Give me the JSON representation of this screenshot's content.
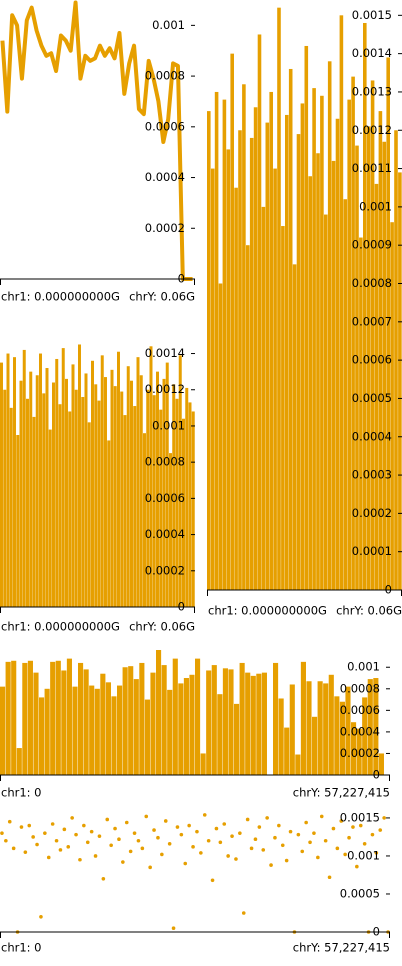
{
  "chart_data": [
    {
      "type": "line",
      "color": "#e69f00",
      "axis_labels": [
        "chr1: 0.000000000G",
        "chrY: 0.06G"
      ],
      "values": [
        0.00094,
        0.00066,
        0.00104,
        0.001,
        0.00079,
        0.00102,
        0.00107,
        0.00098,
        0.00092,
        0.00088,
        0.00089,
        0.00082,
        0.00096,
        0.00094,
        0.0009,
        0.00109,
        0.00079,
        0.00088,
        0.00086,
        0.00087,
        0.00092,
        0.00088,
        0.00091,
        0.00087,
        0.00097,
        0.00073,
        0.00085,
        0.00092,
        0.00067,
        0.00065,
        0.00086,
        0.00079,
        0.0007,
        0.00054,
        0.00063,
        0.00085,
        0.00084,
        0,
        0,
        0
      ],
      "ylim": [
        0,
        0.0011
      ],
      "yticks": [
        0,
        0.0002,
        0.0004,
        0.0006,
        0.0008,
        0.001
      ]
    },
    {
      "type": "bar",
      "color": "#e69f00",
      "axis_labels": [
        "chr1: 0.000000000G",
        "chrY: 0.06G"
      ],
      "values": [
        0.00125,
        0.0011,
        0.0013,
        0.0008,
        0.00128,
        0.00115,
        0.0014,
        0.00105,
        0.0012,
        0.00132,
        0.0009,
        0.00118,
        0.00126,
        0.00145,
        0.001,
        0.00122,
        0.0013,
        0.0011,
        0.00152,
        0.00095,
        0.00124,
        0.00136,
        0.00085,
        0.00119,
        0.00127,
        0.00142,
        0.00108,
        0.00131,
        0.00114,
        0.00129,
        0.00098,
        0.00138,
        0.00112,
        0.00123,
        0.0015,
        0.00102,
        0.00128,
        0.00134,
        0.00116,
        0.00092,
        0.00148,
        0.00121,
        0.00133,
        0.00106,
        0.00125,
        0.00117,
        0.00139,
        0.00096,
        0.0012,
        0.00109
      ],
      "ylim": [
        0,
        0.00154
      ],
      "yticks": [
        0,
        0.0001,
        0.0002,
        0.0003,
        0.0004,
        0.0005,
        0.0006,
        0.0007,
        0.0008,
        0.0009,
        0.001,
        0.0011,
        0.0012,
        0.0013,
        0.0014,
        0.0015
      ]
    },
    {
      "type": "bar",
      "color": "#e69f00",
      "axis_labels": [
        "chr1: 0.000000000G",
        "chrY: 0.06G"
      ],
      "values": [
        0.00135,
        0.0012,
        0.0014,
        0.0011,
        0.00138,
        0.00095,
        0.00125,
        0.00142,
        0.00115,
        0.0013,
        0.00105,
        0.00128,
        0.0014,
        0.00118,
        0.00132,
        0.00098,
        0.00124,
        0.00137,
        0.00112,
        0.00143,
        0.00126,
        0.00108,
        0.00134,
        0.0012,
        0.00145,
        0.00116,
        0.00129,
        0.00102,
        0.00136,
        0.00123,
        0.00114,
        0.00139,
        0.00127,
        0.00092,
        0.00131,
        0.00122,
        0.00141,
        0.00119,
        0.00106,
        0.00133,
        0.00125,
        0.00111,
        0.00138,
        0.00128,
        0.00096,
        0.0012,
        0.00144,
        0.00117,
        0.0013,
        0.00109,
        0.00126,
        0.00135,
        0.00085,
        0.00123,
        0.00115,
        0.00139,
        0.00104,
        0.00121,
        0.00113,
        0.00108
      ],
      "ylim": [
        0,
        0.00153
      ],
      "yticks": [
        0,
        0.0002,
        0.0004,
        0.0006,
        0.0008,
        0.001,
        0.0012,
        0.0014
      ]
    },
    {
      "type": "bar",
      "color": "#e69f00",
      "axis_labels": [
        "chr1: 0",
        "chrY: 57,227,415"
      ],
      "values": [
        0.00082,
        0.00105,
        0.00106,
        0.00025,
        0.00104,
        0.00106,
        0.00095,
        0.00072,
        0.0008,
        0.00105,
        0.00106,
        0.00097,
        0.00108,
        0.00082,
        0.00104,
        0.00098,
        0.00083,
        0.0008,
        0.00094,
        0.00086,
        0.00073,
        0.00083,
        0.001,
        0.00101,
        0.00089,
        0.00104,
        0.0007,
        0.00095,
        0.00116,
        0.00102,
        0.00079,
        0.00108,
        0.00085,
        0.0009,
        0.00093,
        0.00108,
        0.0002,
        0.00097,
        0.00102,
        0.00075,
        0.00099,
        0.00098,
        0.00066,
        0.00104,
        0.00095,
        0.00092,
        0.00094,
        0.00095,
        0,
        0.00104,
        0.00071,
        0.00044,
        0.00084,
        0.00019,
        0.00105,
        0.00087,
        0.00054,
        0.00087,
        0.00085,
        0.00093,
        0.00073,
        0.00068,
        0.00082,
        0.00049,
        0.00043,
        0.00072,
        0.00089,
        0.0009,
        0.0002,
        0
      ],
      "ylim": [
        0,
        0.00116
      ],
      "yticks": [
        0,
        0.0002,
        0.0004,
        0.0006,
        0.0008,
        0.001
      ]
    },
    {
      "type": "scatter",
      "color": "#e69f00",
      "axis_labels": [
        "chr1: 0",
        "chrY: 57,227,415"
      ],
      "values": [
        0.0013,
        0.0012,
        0.00145,
        0.0011,
        0,
        0.00138,
        0.00105,
        0.0014,
        0.00125,
        0.00115,
        0.0002,
        0.0013,
        0.00098,
        0.00142,
        0.0012,
        0.00108,
        0.00135,
        0.00112,
        0.0015,
        0.00128,
        0.00095,
        0.0014,
        0.00118,
        0.00132,
        0.001,
        0.00126,
        0.0007,
        0.00148,
        0.00114,
        0.00136,
        0.00122,
        0.00092,
        0.00144,
        0.00106,
        0.0013,
        0.0012,
        0.0011,
        0.00152,
        0.00085,
        0.00134,
        0.00124,
        0.00102,
        0.00146,
        0.00116,
        5e-05,
        0.00138,
        0.00128,
        0.0009,
        0.0014,
        0.00112,
        0.00132,
        0.00104,
        0.00154,
        0.0012,
        0.00068,
        0.00136,
        0.00118,
        0.00142,
        0.001,
        0.00126,
        0.00096,
        0.0013,
        0.00025,
        0.00148,
        0.0011,
        0.00122,
        0.00138,
        0.00108,
        0.0015,
        0.00088,
        0.00124,
        0.0014,
        0.00114,
        0.00094,
        0.00132,
        0,
        0.00128,
        0.00106,
        0.00144,
        0.00118,
        0.0013,
        0.00098,
        0.00152,
        0.0012,
        0.00072,
        0.00136,
        0.0011,
        0.00146,
        0.00102,
        0.00124,
        0.00138,
        0.00086,
        0.0014,
        0.00116,
        0,
        0.00128,
        0.00104,
        0.00134,
        0.0015,
        0
      ],
      "ylim": [
        0,
        0.00167
      ],
      "yticks": [
        0,
        0.0005,
        0.001,
        0.0015
      ]
    }
  ]
}
